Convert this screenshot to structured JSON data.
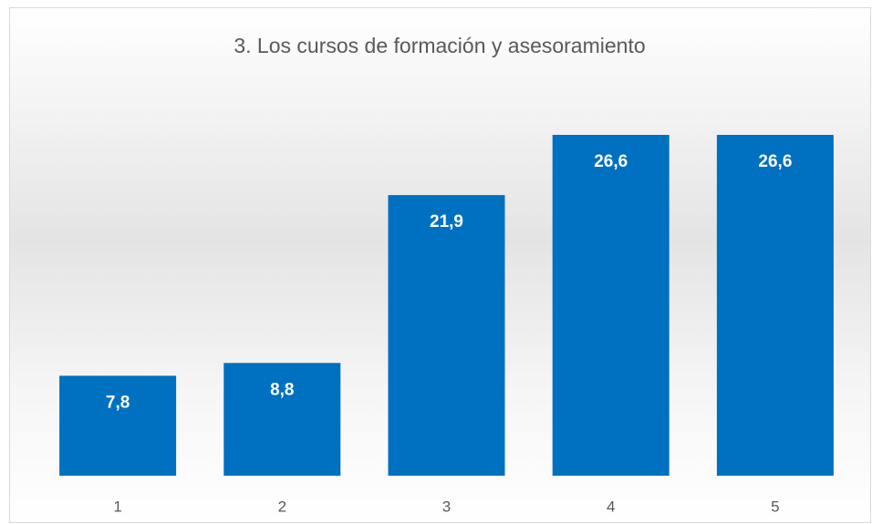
{
  "chart_data": {
    "type": "bar",
    "title": "3. Los cursos de formación y asesoramiento",
    "categories": [
      "1",
      "2",
      "3",
      "4",
      "5"
    ],
    "values": [
      7.8,
      8.8,
      21.9,
      26.6,
      26.6
    ],
    "value_labels": [
      "7,8",
      "8,8",
      "21,9",
      "26,6",
      "26,6"
    ],
    "color": "#0070c0"
  }
}
